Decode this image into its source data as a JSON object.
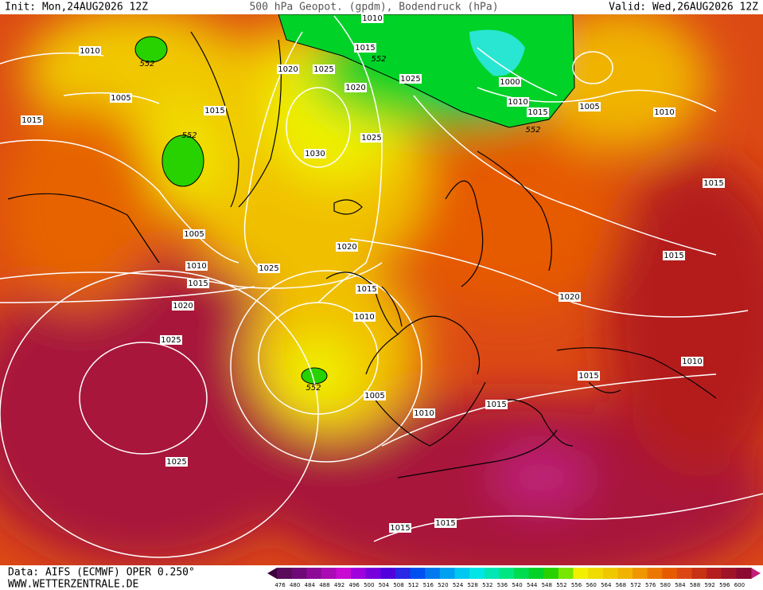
{
  "header": {
    "init": "Init: Mon,24AUG2026 12Z",
    "title": "500 hPa Geopot. (gpdm), Bodendruck (hPa)",
    "valid": "Valid: Wed,26AUG2026 12Z"
  },
  "map_labels": [
    1010,
    552,
    1005,
    1015,
    1020,
    1025,
    1020,
    1015,
    552,
    1025,
    1030,
    1005,
    1010,
    1015,
    1025,
    1020,
    1020,
    1015,
    1010,
    1025,
    552,
    1005,
    1010,
    1015,
    1015,
    1010,
    1020,
    1015,
    1015,
    1010,
    1005,
    1015,
    1010,
    1000,
    552,
    1015,
    1010,
    1025,
    552,
    1025,
    1015,
    1015
  ],
  "legend": {
    "values": [
      476,
      480,
      484,
      488,
      492,
      496,
      500,
      504,
      508,
      512,
      516,
      520,
      524,
      528,
      532,
      536,
      540,
      544,
      548,
      552,
      556,
      560,
      564,
      568,
      572,
      576,
      580,
      584,
      588,
      592,
      596,
      600
    ],
    "colors": [
      "#5a0a5a",
      "#6e0a78",
      "#8c0a96",
      "#aa0ab4",
      "#c80ad2",
      "#a000dc",
      "#7800dc",
      "#5000dc",
      "#2828e6",
      "#0050f0",
      "#0078f0",
      "#00a0f0",
      "#00c8f0",
      "#00e6e6",
      "#00e6b4",
      "#00e682",
      "#00dc50",
      "#00d228",
      "#28d200",
      "#78e600",
      "#f0f000",
      "#f0dc00",
      "#f0c800",
      "#f0b400",
      "#f09600",
      "#eb7800",
      "#e65a00",
      "#dc4614",
      "#c83214",
      "#b41e1e",
      "#a01428",
      "#8c0a32"
    ]
  },
  "footer": {
    "source": "Data: AIFS (ECMWF) OPER 0.250°",
    "site": "WWW.WETTERZENTRALE.DE"
  }
}
